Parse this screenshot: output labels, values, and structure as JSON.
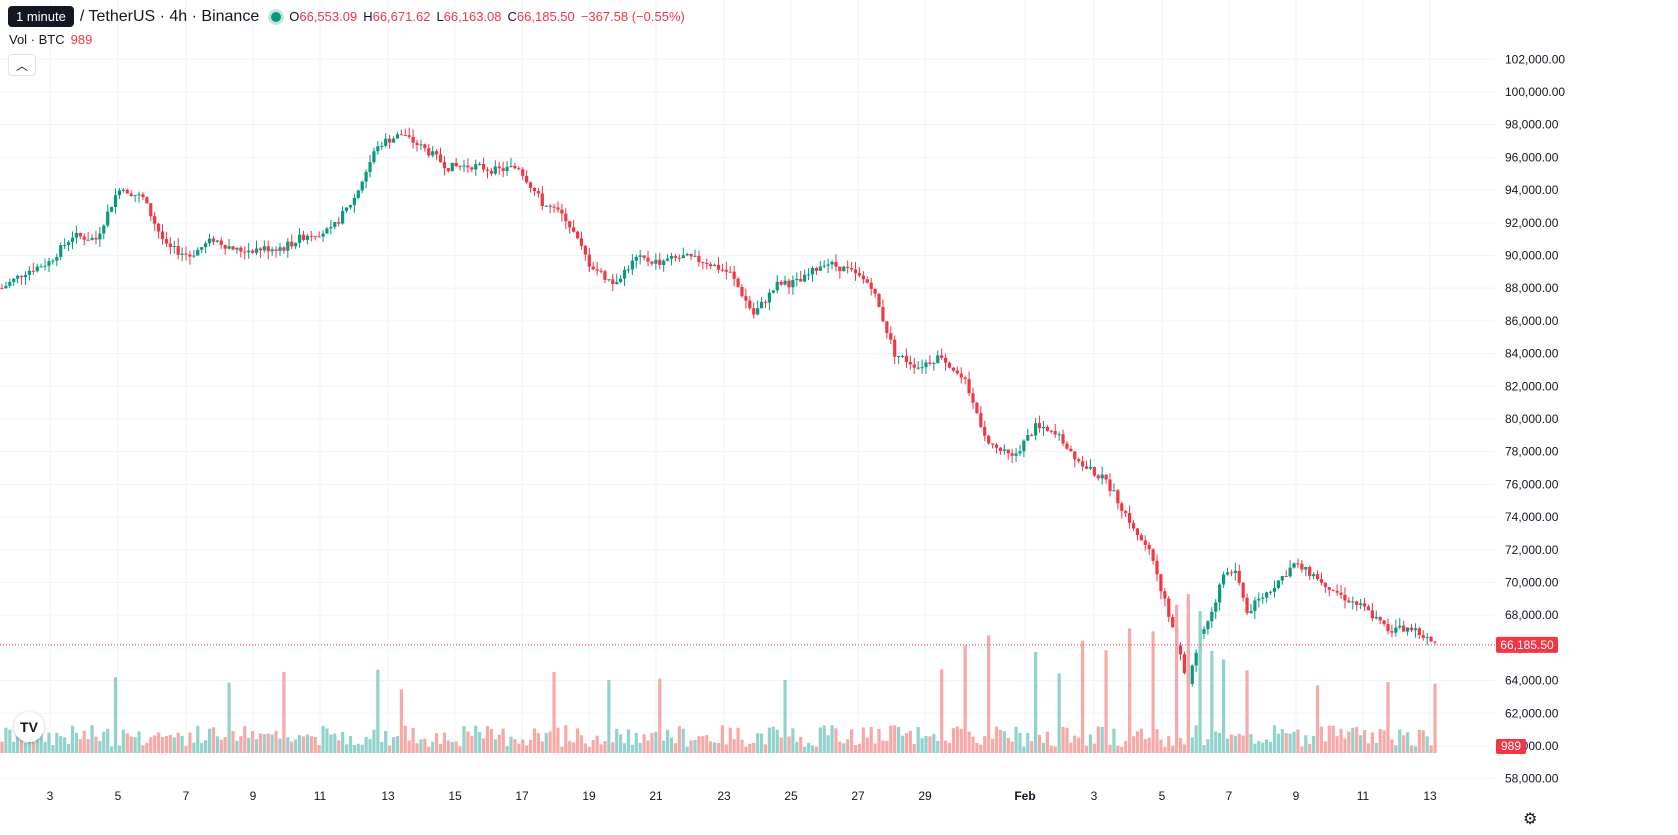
{
  "header": {
    "tooltip": "1 minute",
    "symbol": "/ TetherUS · 4h · Binance",
    "open_label": "O",
    "open": "66,553.09",
    "high_label": "H",
    "high": "66,671.62",
    "low_label": "L",
    "low": "66,163.08",
    "close_label": "C",
    "close": "66,185.50",
    "change": "−367.58 (−0.55%)"
  },
  "volume_legend": {
    "label": "Vol · BTC",
    "value": "989"
  },
  "logo": "TV",
  "colors": {
    "up": "#089981",
    "down": "#f23645",
    "up_vol": "#92d2cc",
    "down_vol": "#f7a9a7",
    "grid": "#f0f3fa"
  },
  "chart_data": {
    "type": "candlestick",
    "y_ticks": [
      "58,000.00",
      "60,000.00",
      "62,000.00",
      "64,000.00",
      "66,000.00",
      "68,000.00",
      "70,000.00",
      "72,000.00",
      "74,000.00",
      "76,000.00",
      "78,000.00",
      "80,000.00",
      "82,000.00",
      "84,000.00",
      "86,000.00",
      "88,000.00",
      "90,000.00",
      "92,000.00",
      "94,000.00",
      "96,000.00",
      "98,000.00",
      "100,000.00",
      "102,000.00"
    ],
    "x_ticks": [
      "3",
      "5",
      "7",
      "9",
      "11",
      "13",
      "15",
      "17",
      "19",
      "21",
      "23",
      "25",
      "27",
      "29",
      "Feb",
      "3",
      "5",
      "7",
      "9",
      "11",
      "13"
    ],
    "ylim": [
      56500,
      102000
    ],
    "last_price": 66185.5,
    "last_price_label": "66,185.50",
    "last_volume_label": "989",
    "price_path": [
      [
        0,
        88000
      ],
      [
        6,
        89000
      ],
      [
        12,
        89600
      ],
      [
        18,
        91200
      ],
      [
        24,
        91000
      ],
      [
        30,
        94200
      ],
      [
        36,
        93500
      ],
      [
        42,
        90500
      ],
      [
        48,
        90000
      ],
      [
        54,
        91000
      ],
      [
        60,
        90300
      ],
      [
        66,
        90400
      ],
      [
        72,
        90500
      ],
      [
        78,
        91300
      ],
      [
        84,
        91500
      ],
      [
        90,
        93500
      ],
      [
        96,
        96800
      ],
      [
        102,
        97400
      ],
      [
        108,
        96500
      ],
      [
        114,
        95400
      ],
      [
        120,
        95500
      ],
      [
        126,
        95200
      ],
      [
        132,
        95400
      ],
      [
        138,
        93200
      ],
      [
        144,
        92300
      ],
      [
        150,
        89500
      ],
      [
        156,
        88300
      ],
      [
        162,
        89800
      ],
      [
        168,
        89600
      ],
      [
        174,
        89900
      ],
      [
        180,
        89600
      ],
      [
        186,
        88900
      ],
      [
        192,
        86400
      ],
      [
        198,
        88200
      ],
      [
        204,
        88400
      ],
      [
        210,
        89600
      ],
      [
        216,
        89100
      ],
      [
        222,
        88200
      ],
      [
        228,
        84000
      ],
      [
        234,
        83200
      ],
      [
        240,
        83900
      ],
      [
        246,
        82200
      ],
      [
        252,
        78500
      ],
      [
        258,
        77600
      ],
      [
        264,
        79500
      ],
      [
        270,
        78900
      ],
      [
        276,
        77200
      ],
      [
        282,
        76200
      ],
      [
        288,
        73800
      ],
      [
        294,
        71400
      ],
      [
        300,
        66200
      ],
      [
        303,
        63800
      ],
      [
        306,
        66700
      ],
      [
        309,
        68200
      ],
      [
        312,
        70500
      ],
      [
        315,
        70800
      ],
      [
        318,
        68200
      ],
      [
        324,
        69600
      ],
      [
        330,
        71100
      ],
      [
        336,
        70300
      ],
      [
        342,
        69200
      ],
      [
        348,
        68400
      ],
      [
        354,
        67100
      ],
      [
        360,
        67200
      ],
      [
        366,
        66185.5
      ]
    ],
    "volume_spikes": [
      [
        29,
        6
      ],
      [
        58,
        6
      ],
      [
        72,
        6
      ],
      [
        96,
        6
      ],
      [
        102,
        5
      ],
      [
        141,
        6
      ],
      [
        155,
        6
      ],
      [
        168,
        6
      ],
      [
        200,
        6
      ],
      [
        240,
        7
      ],
      [
        246,
        8
      ],
      [
        252,
        9
      ],
      [
        264,
        8
      ],
      [
        270,
        7
      ],
      [
        276,
        10
      ],
      [
        282,
        9
      ],
      [
        288,
        10
      ],
      [
        294,
        11
      ],
      [
        300,
        13
      ],
      [
        303,
        14
      ],
      [
        306,
        12
      ],
      [
        309,
        9
      ],
      [
        312,
        8
      ],
      [
        318,
        7
      ],
      [
        336,
        5
      ],
      [
        354,
        6
      ],
      [
        366,
        5
      ]
    ],
    "volume_range": [
      0,
      17000
    ]
  }
}
